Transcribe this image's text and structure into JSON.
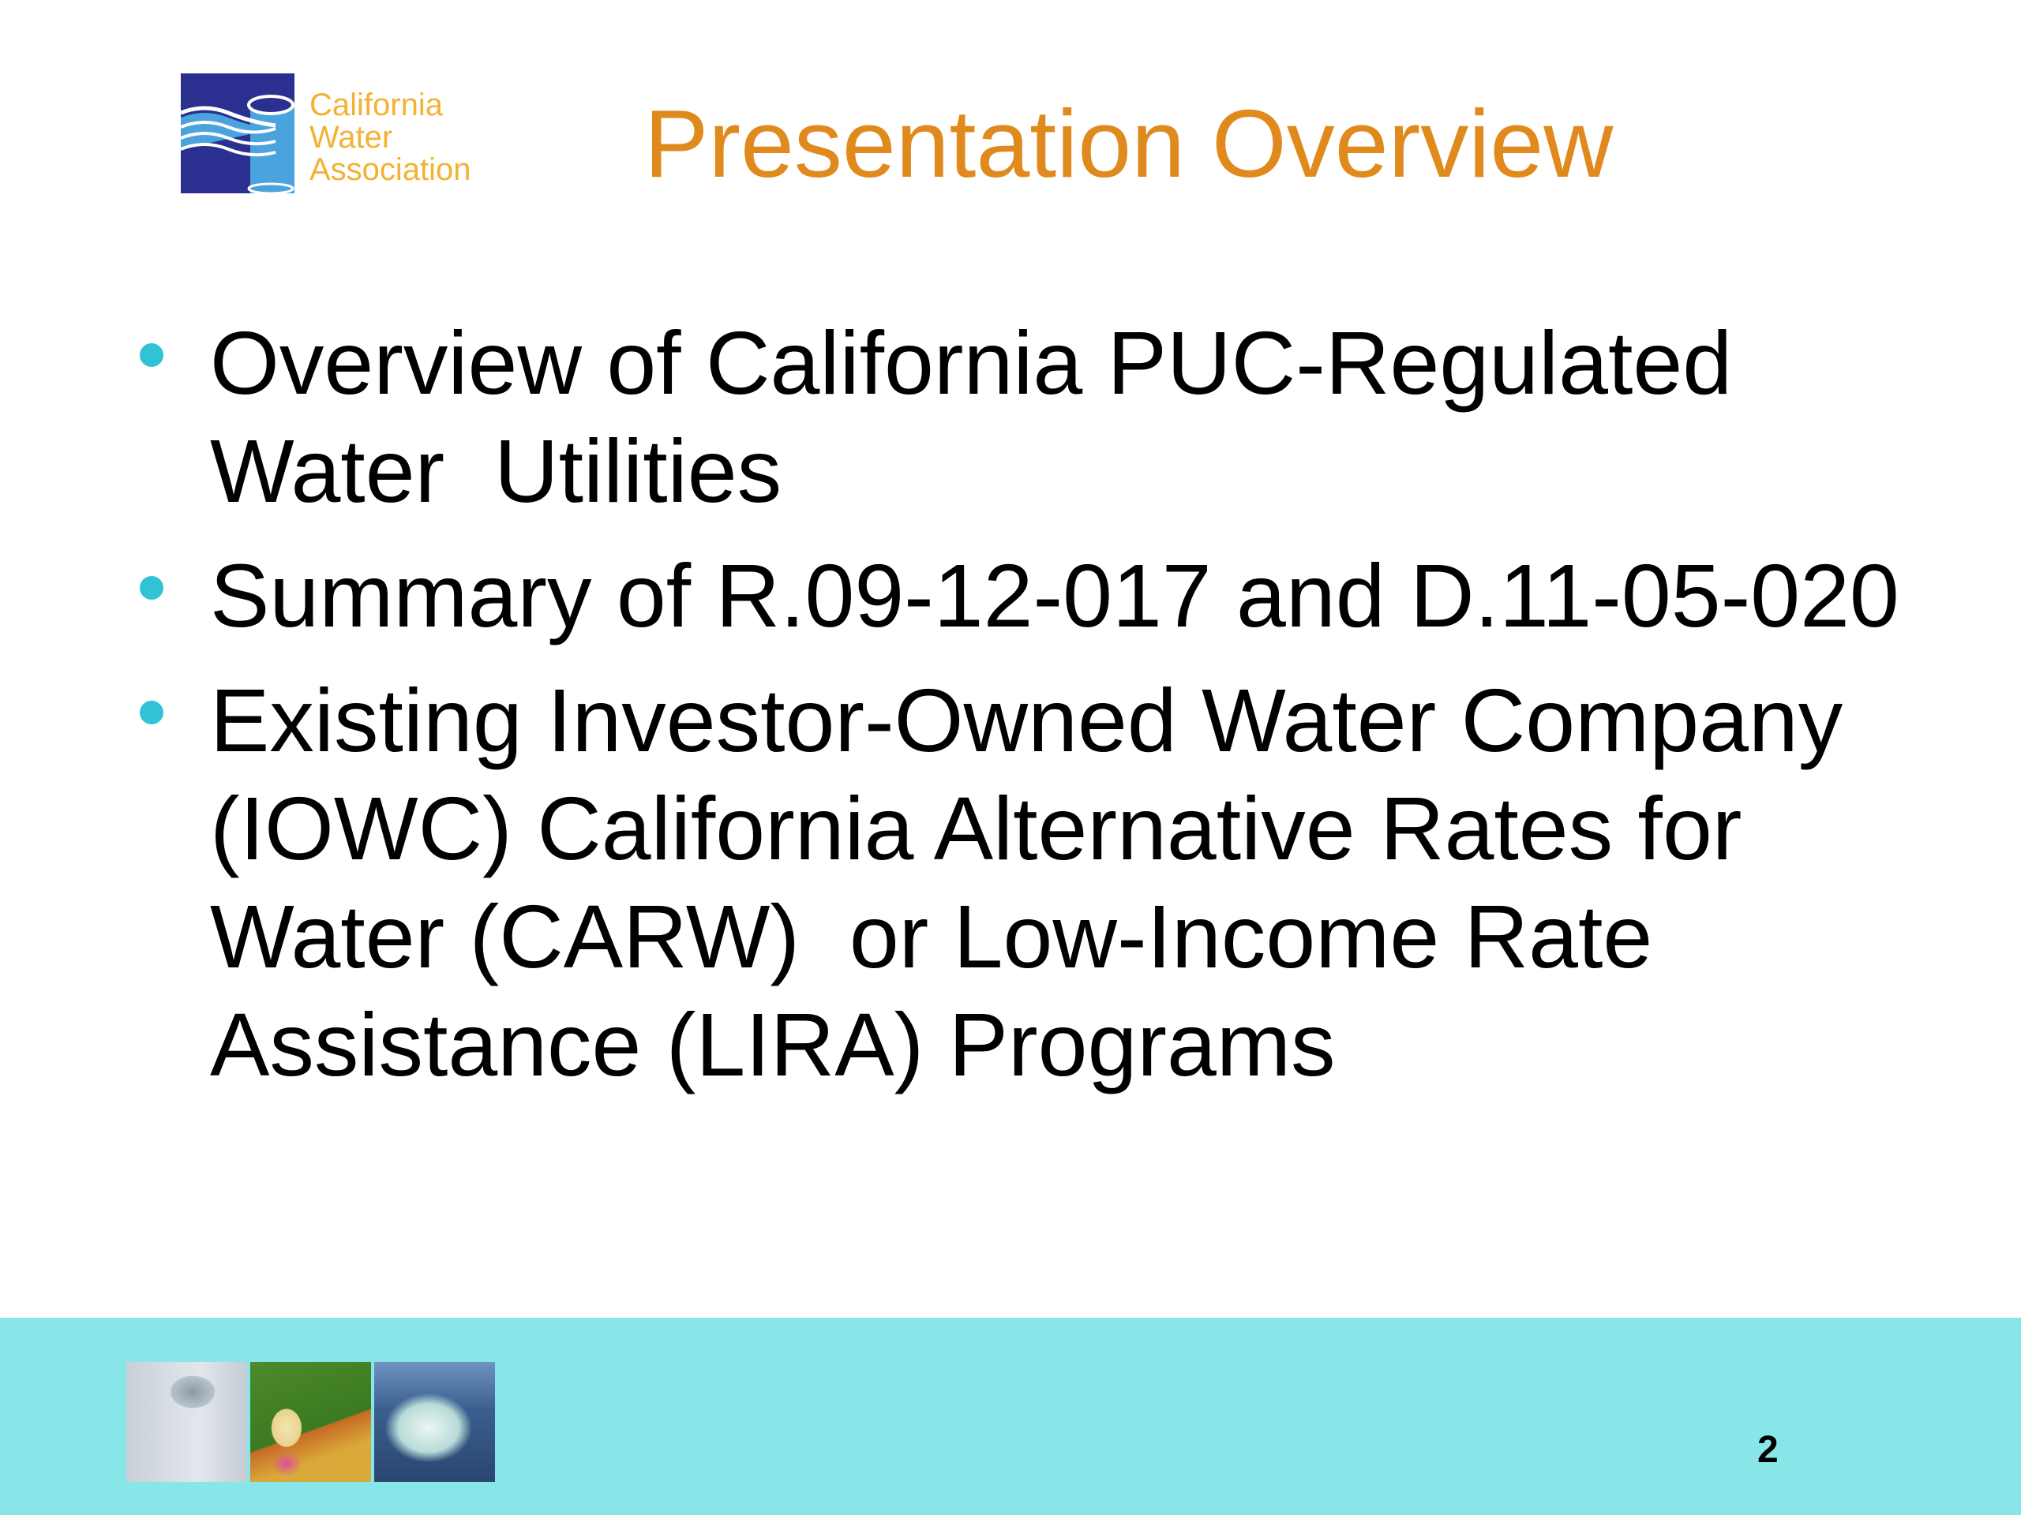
{
  "logo": {
    "lines": [
      "California",
      "Water",
      "Association"
    ],
    "colors": {
      "square": "#2b2f8f",
      "water": "#4aa3dc",
      "text": "#f2b233"
    }
  },
  "slide": {
    "title": "Presentation Overview",
    "bullets": [
      [
        "Overview of California PUC-Regulated",
        "Water  Utilities"
      ],
      [
        "Summary of R.09-12-017 and D.11-05-020"
      ],
      [
        "Existing Investor-Owned Water Company",
        "(IOWC) California Alternative Rates for",
        "Water (CARW)  or Low-Income Rate",
        "Assistance (LIRA) Programs"
      ]
    ]
  },
  "footer": {
    "photos": [
      "shower-head-photo",
      "child-with-hose-on-lawn-photo",
      "faucet-sink-photo"
    ],
    "page_number": "2",
    "background": "#88e6e8"
  },
  "colors": {
    "title": "#e08a1e",
    "bullet": "#2fc3d5"
  }
}
